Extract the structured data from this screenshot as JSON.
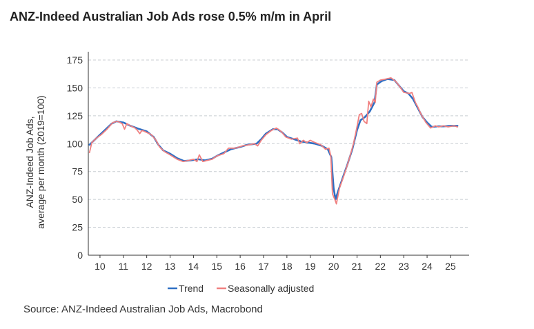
{
  "title": "ANZ-Indeed Australian Job Ads rose 0.5% m/m in April",
  "source": "Source: ANZ-Indeed Australian Job Ads, Macrobond",
  "colors": {
    "trend": "#2e6fc4",
    "seasonally_adjusted": "#f08080",
    "grid": "#c8cdd2",
    "axis": "#333333"
  },
  "chart_data": {
    "type": "line",
    "title": "ANZ-Indeed Australian Job Ads rose 0.5% m/m in April",
    "ylabel_lines": [
      "ANZ-Indeed Job Ads,",
      "average per month (2019=100)"
    ],
    "xlabel": "",
    "ylim": [
      0,
      175
    ],
    "yticks": [
      0,
      25,
      50,
      75,
      100,
      125,
      150,
      175
    ],
    "xlim": [
      2009.5,
      2025.8
    ],
    "xticks": [
      {
        "value": 2010,
        "label": "10"
      },
      {
        "value": 2011,
        "label": "11"
      },
      {
        "value": 2012,
        "label": "12"
      },
      {
        "value": 2013,
        "label": "13"
      },
      {
        "value": 2014,
        "label": "14"
      },
      {
        "value": 2015,
        "label": "15"
      },
      {
        "value": 2016,
        "label": "16"
      },
      {
        "value": 2017,
        "label": "17"
      },
      {
        "value": 2018,
        "label": "18"
      },
      {
        "value": 2019,
        "label": "19"
      },
      {
        "value": 2020,
        "label": "20"
      },
      {
        "value": 2021,
        "label": "21"
      },
      {
        "value": 2022,
        "label": "22"
      },
      {
        "value": 2023,
        "label": "23"
      },
      {
        "value": 2024,
        "label": "24"
      },
      {
        "value": 2025,
        "label": "25"
      }
    ],
    "grid": "horizontal dashed",
    "legend_position": "bottom",
    "series": [
      {
        "name": "Trend",
        "color": "#2e6fc4",
        "points": [
          [
            2009.55,
            99
          ],
          [
            2009.75,
            103
          ],
          [
            2010.0,
            108
          ],
          [
            2010.25,
            113
          ],
          [
            2010.5,
            118
          ],
          [
            2010.7,
            120
          ],
          [
            2011.0,
            119
          ],
          [
            2011.3,
            116
          ],
          [
            2011.7,
            113
          ],
          [
            2012.0,
            111
          ],
          [
            2012.3,
            106
          ],
          [
            2012.5,
            99
          ],
          [
            2012.7,
            94
          ],
          [
            2013.0,
            91
          ],
          [
            2013.3,
            87
          ],
          [
            2013.6,
            84.5
          ],
          [
            2013.9,
            85
          ],
          [
            2014.2,
            86
          ],
          [
            2014.5,
            85
          ],
          [
            2014.8,
            86.5
          ],
          [
            2015.0,
            89
          ],
          [
            2015.3,
            92
          ],
          [
            2015.6,
            95
          ],
          [
            2016.0,
            97
          ],
          [
            2016.3,
            99
          ],
          [
            2016.7,
            100
          ],
          [
            2016.9,
            104
          ],
          [
            2017.1,
            109
          ],
          [
            2017.4,
            113
          ],
          [
            2017.6,
            113
          ],
          [
            2017.8,
            110
          ],
          [
            2018.0,
            106
          ],
          [
            2018.3,
            104
          ],
          [
            2018.6,
            102
          ],
          [
            2018.9,
            101
          ],
          [
            2019.2,
            100
          ],
          [
            2019.5,
            98
          ],
          [
            2019.75,
            95
          ],
          [
            2019.9,
            88
          ],
          [
            2020.0,
            60
          ],
          [
            2020.08,
            50
          ],
          [
            2020.2,
            58
          ],
          [
            2020.4,
            70
          ],
          [
            2020.6,
            82
          ],
          [
            2020.8,
            95
          ],
          [
            2021.0,
            112
          ],
          [
            2021.15,
            121
          ],
          [
            2021.35,
            124
          ],
          [
            2021.55,
            129
          ],
          [
            2021.75,
            137
          ],
          [
            2021.85,
            153
          ],
          [
            2022.05,
            156
          ],
          [
            2022.3,
            158
          ],
          [
            2022.6,
            157
          ],
          [
            2022.8,
            152
          ],
          [
            2023.0,
            147
          ],
          [
            2023.2,
            145
          ],
          [
            2023.4,
            140
          ],
          [
            2023.6,
            132
          ],
          [
            2023.8,
            124
          ],
          [
            2024.0,
            119
          ],
          [
            2024.2,
            115
          ],
          [
            2024.45,
            115.5
          ],
          [
            2024.7,
            115.5
          ],
          [
            2025.0,
            116
          ],
          [
            2025.3,
            116
          ]
        ]
      },
      {
        "name": "Seasonally adjusted",
        "color": "#f08080",
        "points": [
          [
            2009.55,
            92
          ],
          [
            2009.65,
            101
          ],
          [
            2009.85,
            105
          ],
          [
            2010.05,
            108
          ],
          [
            2010.3,
            113
          ],
          [
            2010.55,
            119
          ],
          [
            2010.75,
            120
          ],
          [
            2010.95,
            118
          ],
          [
            2011.05,
            113
          ],
          [
            2011.15,
            118
          ],
          [
            2011.3,
            116
          ],
          [
            2011.5,
            114
          ],
          [
            2011.6,
            112
          ],
          [
            2011.7,
            109
          ],
          [
            2011.8,
            112
          ],
          [
            2012.0,
            110
          ],
          [
            2012.2,
            108
          ],
          [
            2012.4,
            103
          ],
          [
            2012.55,
            97
          ],
          [
            2012.75,
            93
          ],
          [
            2013.0,
            90
          ],
          [
            2013.3,
            86
          ],
          [
            2013.55,
            84
          ],
          [
            2013.8,
            85
          ],
          [
            2014.0,
            86
          ],
          [
            2014.15,
            84
          ],
          [
            2014.25,
            90
          ],
          [
            2014.4,
            84
          ],
          [
            2014.6,
            85
          ],
          [
            2014.8,
            86
          ],
          [
            2015.0,
            89
          ],
          [
            2015.3,
            91
          ],
          [
            2015.5,
            96
          ],
          [
            2015.8,
            96
          ],
          [
            2016.1,
            98
          ],
          [
            2016.4,
            99
          ],
          [
            2016.6,
            100
          ],
          [
            2016.75,
            98
          ],
          [
            2016.9,
            103
          ],
          [
            2017.1,
            108
          ],
          [
            2017.35,
            112
          ],
          [
            2017.55,
            114
          ],
          [
            2017.75,
            111
          ],
          [
            2017.95,
            106
          ],
          [
            2018.2,
            104
          ],
          [
            2018.45,
            105
          ],
          [
            2018.55,
            100
          ],
          [
            2018.7,
            103
          ],
          [
            2018.85,
            101
          ],
          [
            2019.0,
            103
          ],
          [
            2019.2,
            101
          ],
          [
            2019.45,
            99
          ],
          [
            2019.65,
            95
          ],
          [
            2019.8,
            96
          ],
          [
            2019.88,
            89
          ],
          [
            2019.95,
            55
          ],
          [
            2020.05,
            50
          ],
          [
            2020.12,
            46
          ],
          [
            2020.25,
            60
          ],
          [
            2020.45,
            72
          ],
          [
            2020.65,
            85
          ],
          [
            2020.85,
            100
          ],
          [
            2021.0,
            115
          ],
          [
            2021.1,
            126
          ],
          [
            2021.2,
            127
          ],
          [
            2021.3,
            120
          ],
          [
            2021.42,
            118
          ],
          [
            2021.5,
            138
          ],
          [
            2021.6,
            133
          ],
          [
            2021.7,
            140
          ],
          [
            2021.78,
            137
          ],
          [
            2021.85,
            155
          ],
          [
            2022.0,
            157
          ],
          [
            2022.25,
            158
          ],
          [
            2022.45,
            159
          ],
          [
            2022.65,
            156
          ],
          [
            2022.8,
            152
          ],
          [
            2023.0,
            146
          ],
          [
            2023.25,
            145
          ],
          [
            2023.35,
            146
          ],
          [
            2023.5,
            137
          ],
          [
            2023.6,
            133
          ],
          [
            2023.75,
            126
          ],
          [
            2023.95,
            119
          ],
          [
            2024.15,
            114
          ],
          [
            2024.35,
            116
          ],
          [
            2024.5,
            115
          ],
          [
            2024.7,
            116
          ],
          [
            2024.9,
            115
          ],
          [
            2025.15,
            116
          ],
          [
            2025.3,
            115
          ]
        ]
      }
    ]
  }
}
